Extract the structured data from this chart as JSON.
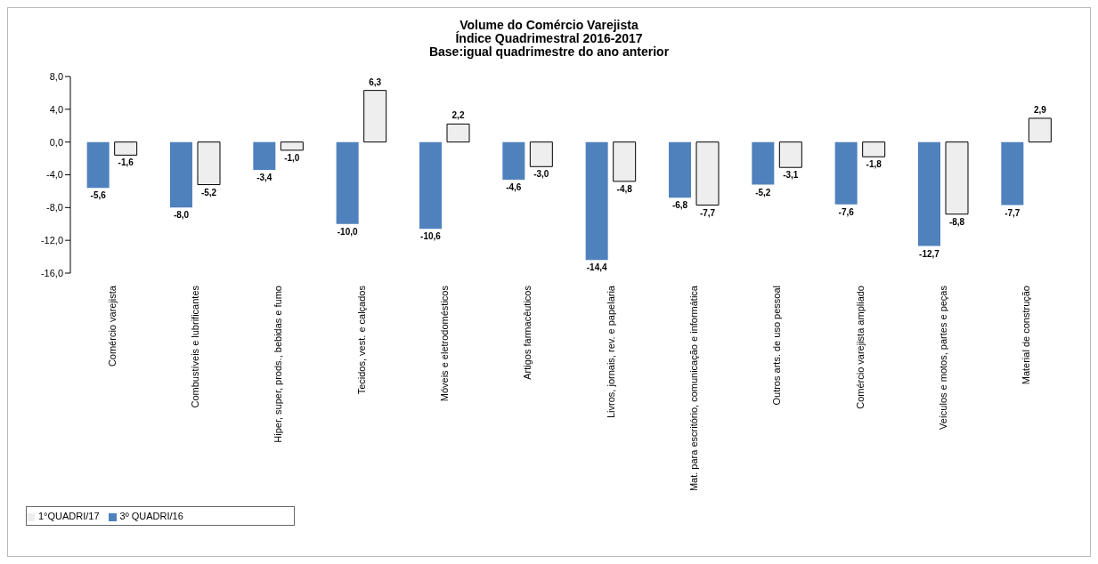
{
  "chart_data": {
    "type": "bar",
    "title": "Volume do Comércio Varejista",
    "subtitle": "Índice Quadrimestral 2016-2017\nBase:igual quadrimestre do ano anterior",
    "categories": [
      "Comércio varejista",
      "Combustíveis e lubrificantes",
      "Hiper, super, prods., bebidas e fumo",
      "Tecidos, vest. e calçados",
      "Móveis e eletrodomésticos",
      "Artigos farmacêuticos",
      "Livros, jornais, rev. e papelaria",
      "Mat. para escritório, comunicação e informática",
      "Outros arts. de uso pessoal",
      "Comércio varejista ampliado",
      "Veículos e motos, partes e peças",
      "Material de construção"
    ],
    "series": [
      {
        "name": "3º QUADRI/16",
        "color": "#4f81bd",
        "values": [
          -5.6,
          -8.0,
          -3.4,
          -10.0,
          -10.6,
          -4.6,
          -14.4,
          -6.8,
          -5.2,
          -7.6,
          -12.7,
          -7.7
        ],
        "value_labels": [
          "-5,6",
          "-8,0",
          "-3,4",
          "-10,0",
          "-10,6",
          "-4,6",
          "-14,4",
          "-6,8",
          "-5,2",
          "-7,6",
          "-12,7",
          "-7,7"
        ]
      },
      {
        "name": "1°QUADRI/17",
        "color": "#eeeeee",
        "values": [
          -1.6,
          -5.2,
          -1.0,
          6.3,
          2.2,
          -3.0,
          -4.8,
          -7.7,
          -3.1,
          -1.8,
          -8.8,
          2.9
        ],
        "value_labels": [
          "-1,6",
          "-5,2",
          "-1,0",
          "6,3",
          "2,2",
          "-3,0",
          "-4,8",
          "-7,7",
          "-3,1",
          "-1,8",
          "-8,8",
          "2,9"
        ]
      }
    ],
    "ylim": [
      -16,
      8
    ],
    "yticks": [
      {
        "value": -16,
        "label": "-16,0"
      },
      {
        "value": -12,
        "label": "-12,0"
      },
      {
        "value": -8,
        "label": "-8,0"
      },
      {
        "value": -4,
        "label": "-4,0"
      },
      {
        "value": 0,
        "label": "0,0"
      },
      {
        "value": 4,
        "label": "4,0"
      },
      {
        "value": 8,
        "label": "8,0"
      }
    ],
    "grid": false,
    "legend": "bottom"
  }
}
